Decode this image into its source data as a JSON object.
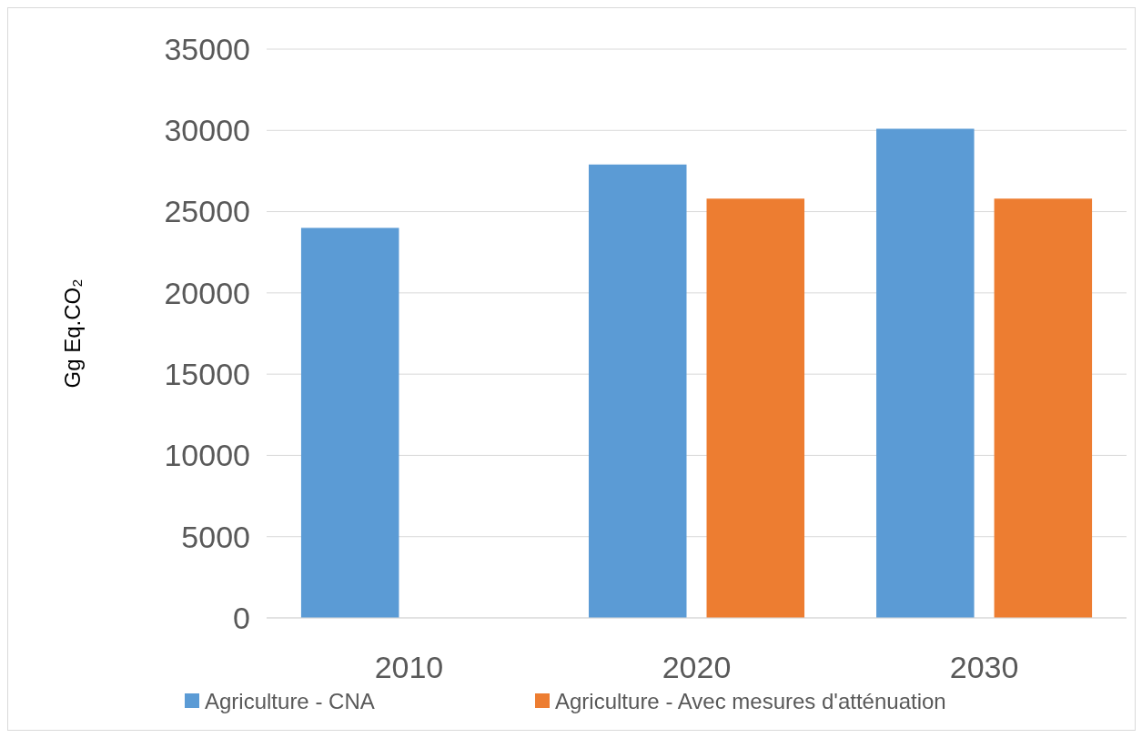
{
  "chart_data": {
    "type": "bar",
    "ylabel": "Gg Eq.CO₂",
    "categories": [
      "2010",
      "2020",
      "2030"
    ],
    "series": [
      {
        "name": "Agriculture - CNA",
        "color": "#5b9bd5",
        "values": [
          24000,
          27900,
          30100
        ]
      },
      {
        "name": "Agriculture - Avec mesures d'atténuation",
        "color": "#ed7d31",
        "values": [
          null,
          25800,
          25800
        ]
      }
    ],
    "ylim": [
      0,
      35000
    ],
    "yticks": [
      0,
      5000,
      10000,
      15000,
      20000,
      25000,
      30000,
      35000
    ],
    "grid": "y",
    "legend": "bottom"
  }
}
